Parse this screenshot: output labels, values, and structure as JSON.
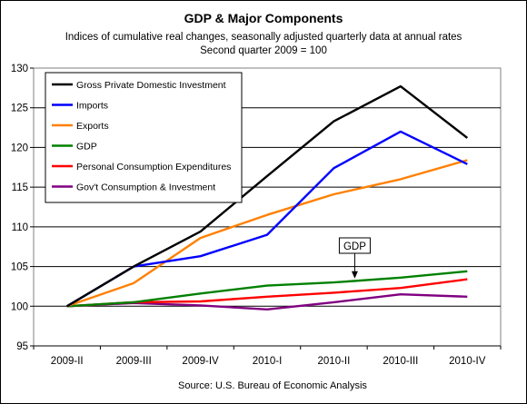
{
  "chart_data": {
    "type": "line",
    "title": "GDP & Major Components",
    "subtitle_lines": [
      "Indices of cumulative real changes, seasonally adjusted quarterly data at annual rates",
      "Second quarter 2009 = 100"
    ],
    "source": "Source: U.S. Bureau of Economic Analysis",
    "categories": [
      "2009-II",
      "2009-III",
      "2009-IV",
      "2010-I",
      "2010-II",
      "2010-III",
      "2010-IV"
    ],
    "ylim": [
      95,
      130
    ],
    "yticks": [
      95,
      100,
      105,
      110,
      115,
      120,
      125,
      130
    ],
    "grid": "horizontal",
    "legend_position": "top-left",
    "annotation": {
      "text": "GDP",
      "points_to_series": "GDP",
      "category": "2010-II"
    },
    "series": [
      {
        "name": "Gross Private Domestic Investment",
        "color": "#000000",
        "values": [
          100,
          105.0,
          109.4,
          116.4,
          123.3,
          127.7,
          121.2
        ]
      },
      {
        "name": "Imports",
        "color": "#0000ff",
        "values": [
          100,
          105.0,
          106.3,
          109.0,
          117.4,
          122.0,
          117.9
        ]
      },
      {
        "name": "Exports",
        "color": "#ff8000",
        "values": [
          100,
          102.9,
          108.6,
          111.5,
          114.1,
          116.0,
          118.4
        ]
      },
      {
        "name": "GDP",
        "color": "#008000",
        "values": [
          100,
          100.5,
          101.6,
          102.6,
          103.0,
          103.6,
          104.4
        ]
      },
      {
        "name": "Personal Consumption Expenditures",
        "color": "#ff0000",
        "values": [
          100,
          100.5,
          100.6,
          101.2,
          101.7,
          102.3,
          103.4
        ]
      },
      {
        "name": "Gov't Consumption & Investment",
        "color": "#800080",
        "values": [
          100,
          100.4,
          100.1,
          99.6,
          100.5,
          101.5,
          101.2
        ]
      }
    ]
  }
}
